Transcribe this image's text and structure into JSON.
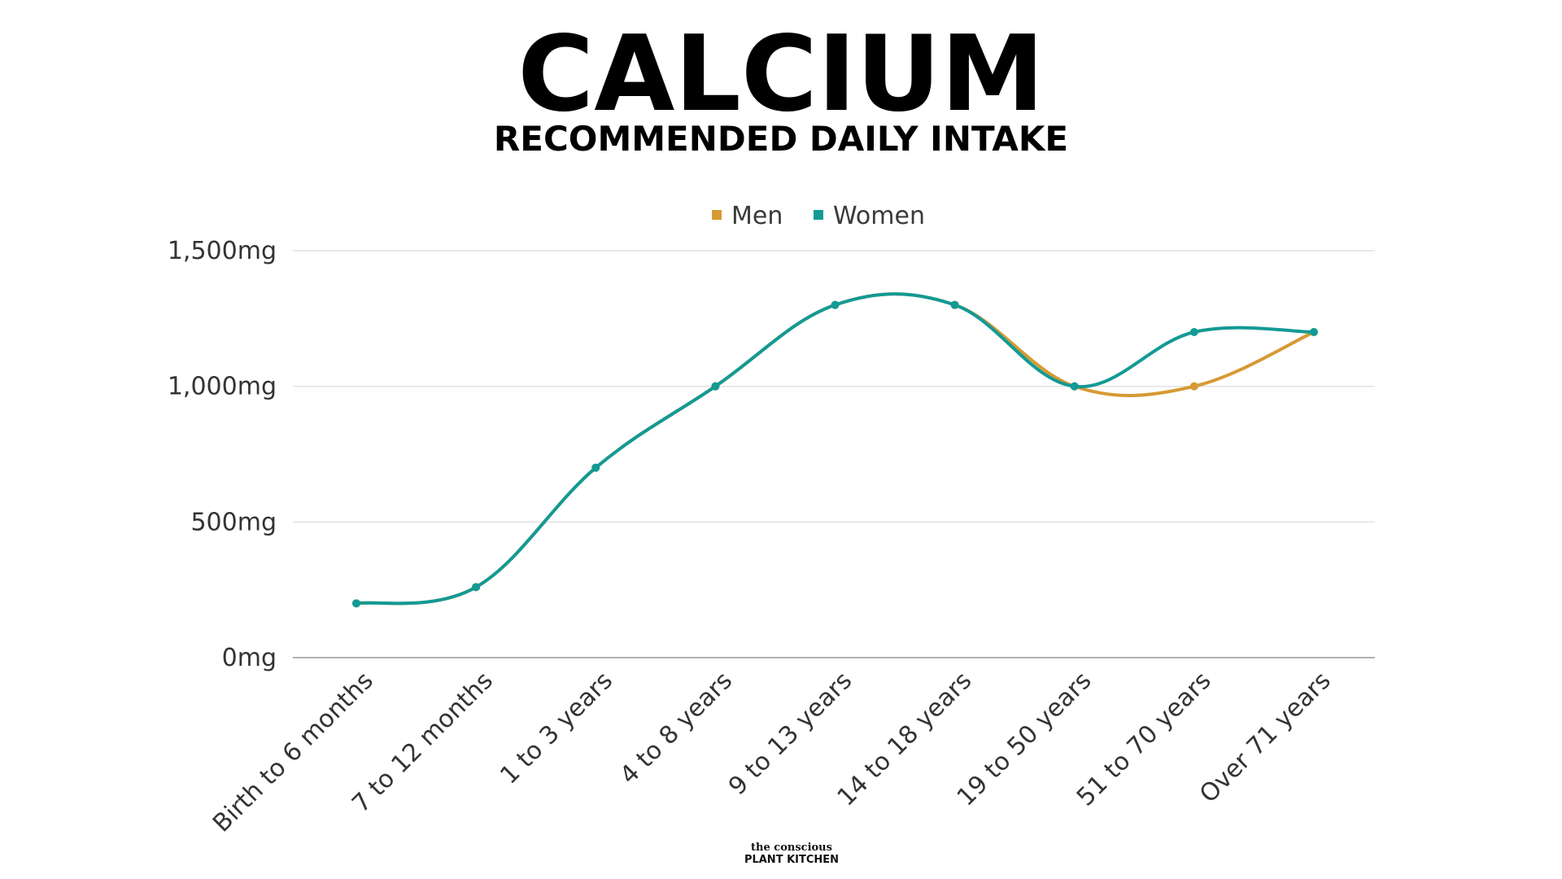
{
  "chart_data": {
    "type": "line",
    "title": "CALCIUM",
    "subtitle": "RECOMMENDED DAILY INTAKE",
    "categories": [
      "Birth to 6 months",
      "7 to 12 months",
      "1 to 3 years",
      "4 to 8 years",
      "9 to 13 years",
      "14 to 18 years",
      "19 to 50 years",
      "51 to 70 years",
      "Over 71 years"
    ],
    "series": [
      {
        "name": "Men",
        "color": "#d69a34",
        "values": [
          200,
          260,
          700,
          1000,
          1300,
          1300,
          1000,
          1000,
          1200
        ]
      },
      {
        "name": "Women",
        "color": "#139a95",
        "values": [
          200,
          260,
          700,
          1000,
          1300,
          1300,
          1000,
          1200,
          1200
        ]
      }
    ],
    "ylim": [
      0,
      1500
    ],
    "yticks": [
      {
        "value": 0,
        "label": "0mg"
      },
      {
        "value": 500,
        "label": "500mg"
      },
      {
        "value": 1000,
        "label": "1,000mg"
      },
      {
        "value": 1500,
        "label": "1,500mg"
      }
    ],
    "xlabel": "",
    "ylabel": "",
    "grid": true,
    "legend_position": "top-center",
    "smooth": true
  },
  "branding": {
    "line1": "the conscious",
    "line2": "PLANT KITCHEN"
  }
}
